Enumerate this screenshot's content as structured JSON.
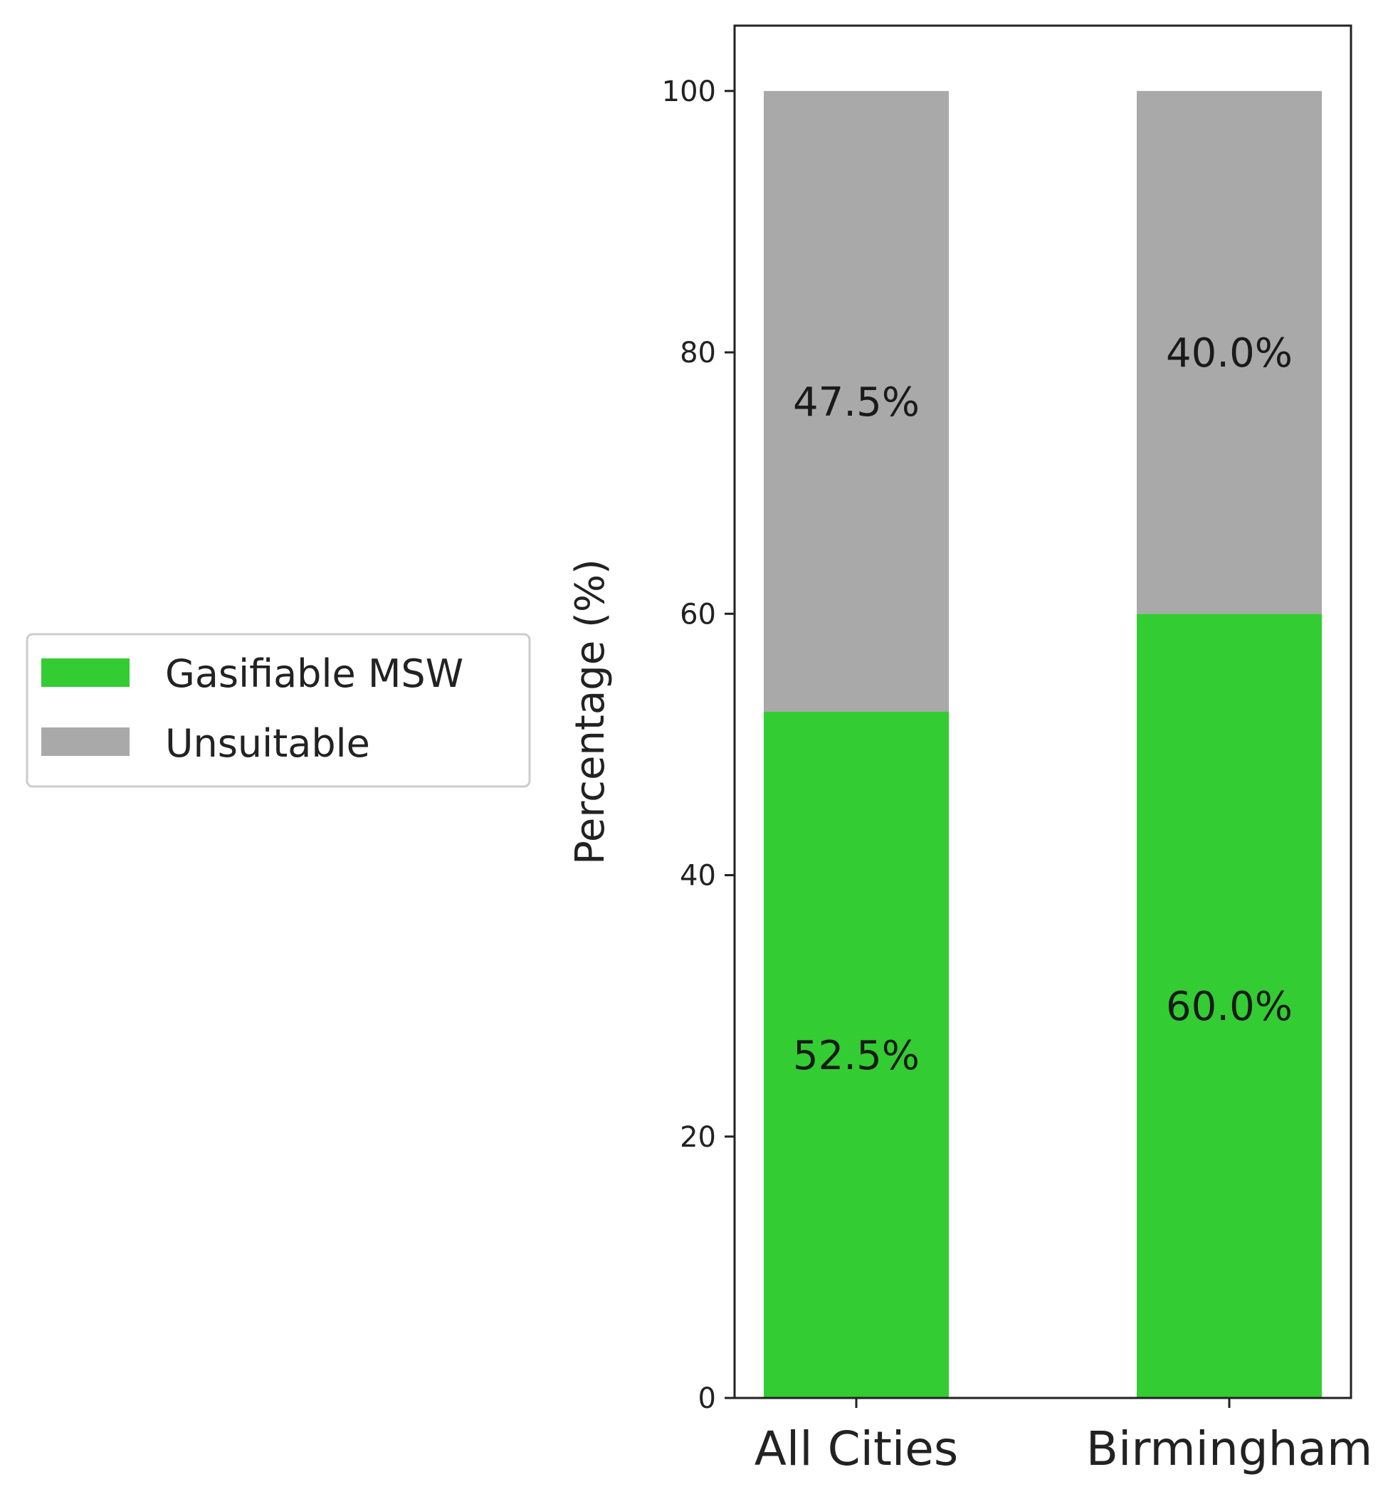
{
  "chart_data": {
    "type": "bar",
    "stacked": true,
    "title": "",
    "xlabel": "",
    "ylabel": "Percentage (%)",
    "categories": [
      "All Cities",
      "Birmingham"
    ],
    "series": [
      {
        "name": "Gasifiable MSW",
        "color": "#33cc33",
        "values": [
          52.5,
          60.0
        ],
        "labels": [
          "52.5%",
          "60.0%"
        ]
      },
      {
        "name": "Unsuitable",
        "color": "#a9a9a9",
        "values": [
          47.5,
          40.0
        ],
        "labels": [
          "47.5%",
          "40.0%"
        ]
      }
    ],
    "ylim": [
      0,
      105
    ],
    "yticks": [
      0,
      20,
      40,
      60,
      80,
      100
    ],
    "grid": false,
    "legend": {
      "placement": "left-outside-center",
      "entries": [
        "Gasifiable MSW",
        "Unsuitable"
      ]
    }
  }
}
